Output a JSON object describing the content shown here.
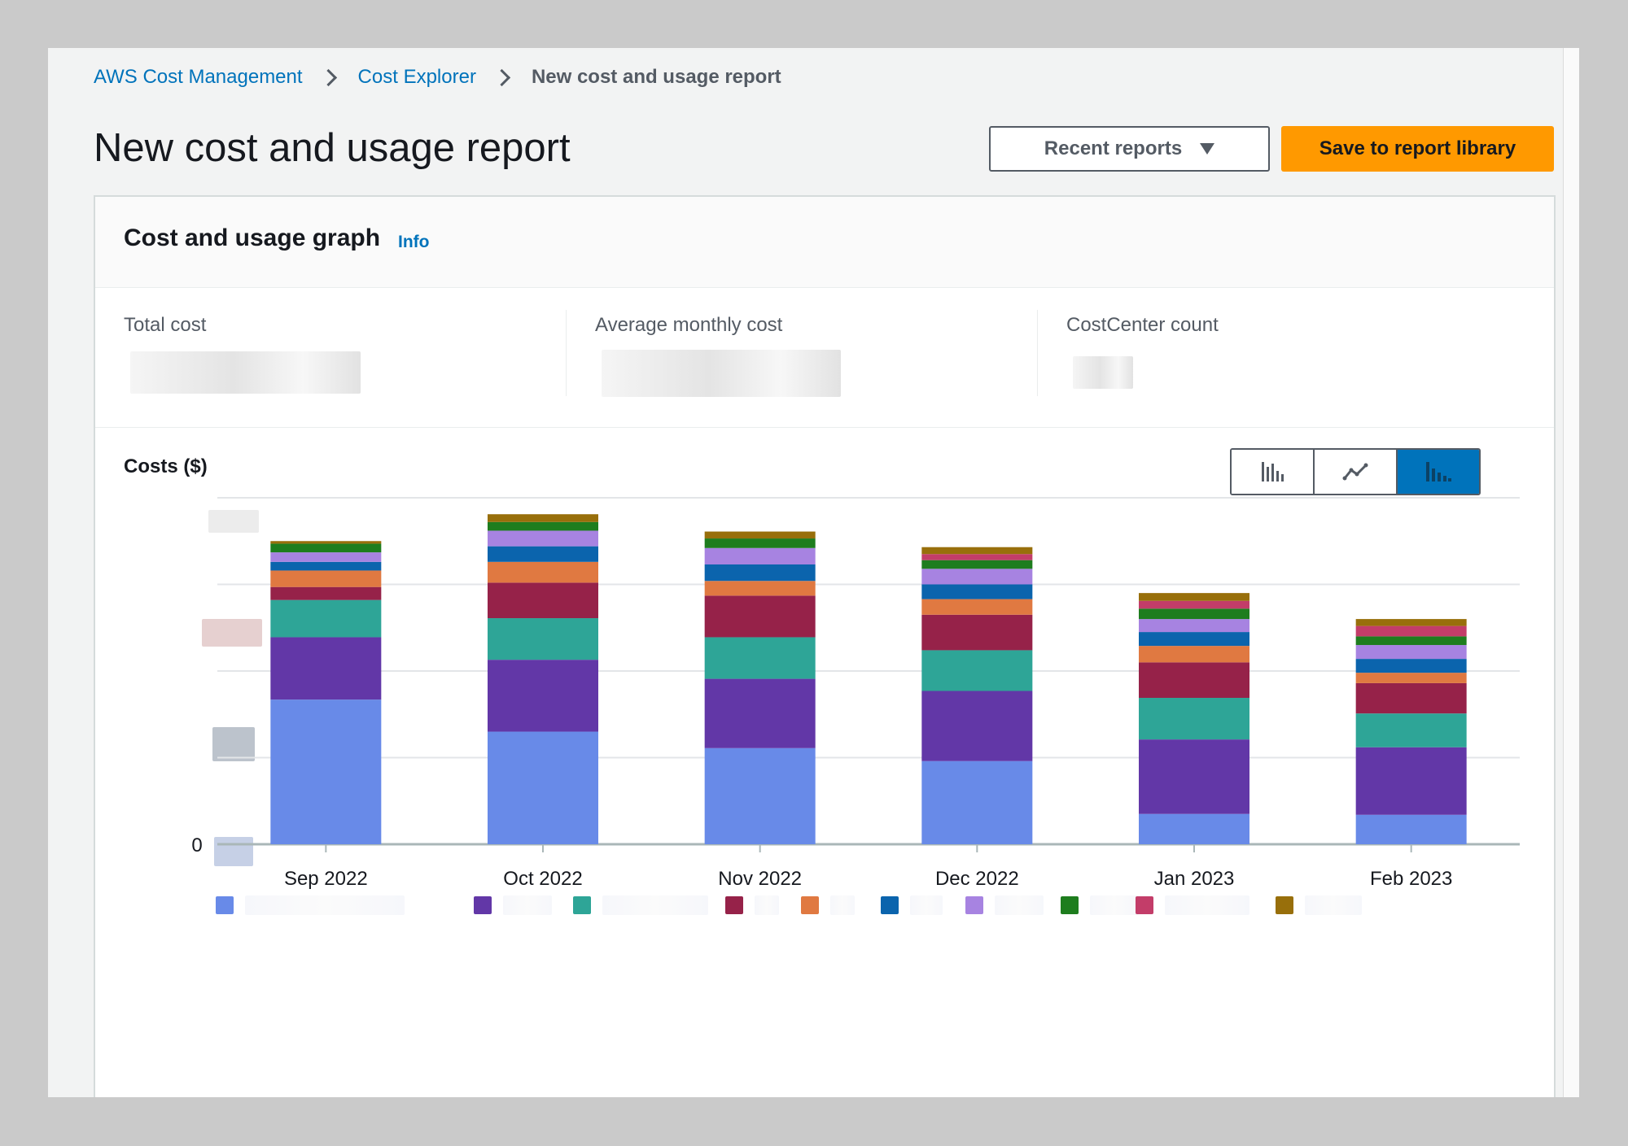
{
  "breadcrumb": {
    "items": [
      "AWS Cost Management",
      "Cost Explorer"
    ],
    "current": "New cost and usage report"
  },
  "page": {
    "title": "New cost and usage report"
  },
  "actions": {
    "recent_reports_label": "Recent reports",
    "save_label": "Save to report library"
  },
  "panel": {
    "title": "Cost and usage graph",
    "info_link": "Info"
  },
  "summary": {
    "metrics": [
      {
        "label": "Total cost"
      },
      {
        "label": "Average monthly cost"
      },
      {
        "label": "CostCenter count"
      }
    ]
  },
  "chart_controls": {
    "options": [
      {
        "icon": "bar-chart-icon"
      },
      {
        "icon": "line-chart-icon"
      },
      {
        "icon": "stacked-bar-chart-icon",
        "selected": true
      }
    ]
  },
  "colors": {
    "series": [
      "#688ae8",
      "#6237a7",
      "#2ea597",
      "#962249",
      "#e07941",
      "#0b64ad",
      "#a783e1",
      "#1e7d1e",
      "#c33d69",
      "#986f0b"
    ]
  },
  "chart_data": {
    "type": "bar",
    "stacked": true,
    "title": "Costs ($)",
    "categories": [
      "Sep 2022",
      "Oct 2022",
      "Nov 2022",
      "Dec 2022",
      "Jan 2023",
      "Feb 2023"
    ],
    "yaxis_visible_tick": "0",
    "ylim": [
      0,
      400
    ],
    "grid": true,
    "legend_placement": "bottom",
    "series": [
      {
        "values": [
          167,
          130,
          111,
          96,
          35,
          34
        ]
      },
      {
        "values": [
          72,
          83,
          80,
          81,
          86,
          78
        ]
      },
      {
        "values": [
          43,
          48,
          48,
          47,
          48,
          39
        ]
      },
      {
        "values": [
          15,
          41,
          48,
          41,
          41,
          35
        ]
      },
      {
        "values": [
          19,
          24,
          17,
          18,
          19,
          12
        ]
      },
      {
        "values": [
          10,
          18,
          19,
          17,
          16,
          16
        ]
      },
      {
        "values": [
          11,
          18,
          19,
          18,
          15,
          16
        ]
      },
      {
        "values": [
          10,
          10,
          11,
          10,
          12,
          10
        ]
      },
      {
        "values": [
          0,
          0,
          0,
          7,
          9,
          12
        ]
      },
      {
        "values": [
          3,
          9,
          8,
          8,
          9,
          8
        ]
      }
    ]
  }
}
